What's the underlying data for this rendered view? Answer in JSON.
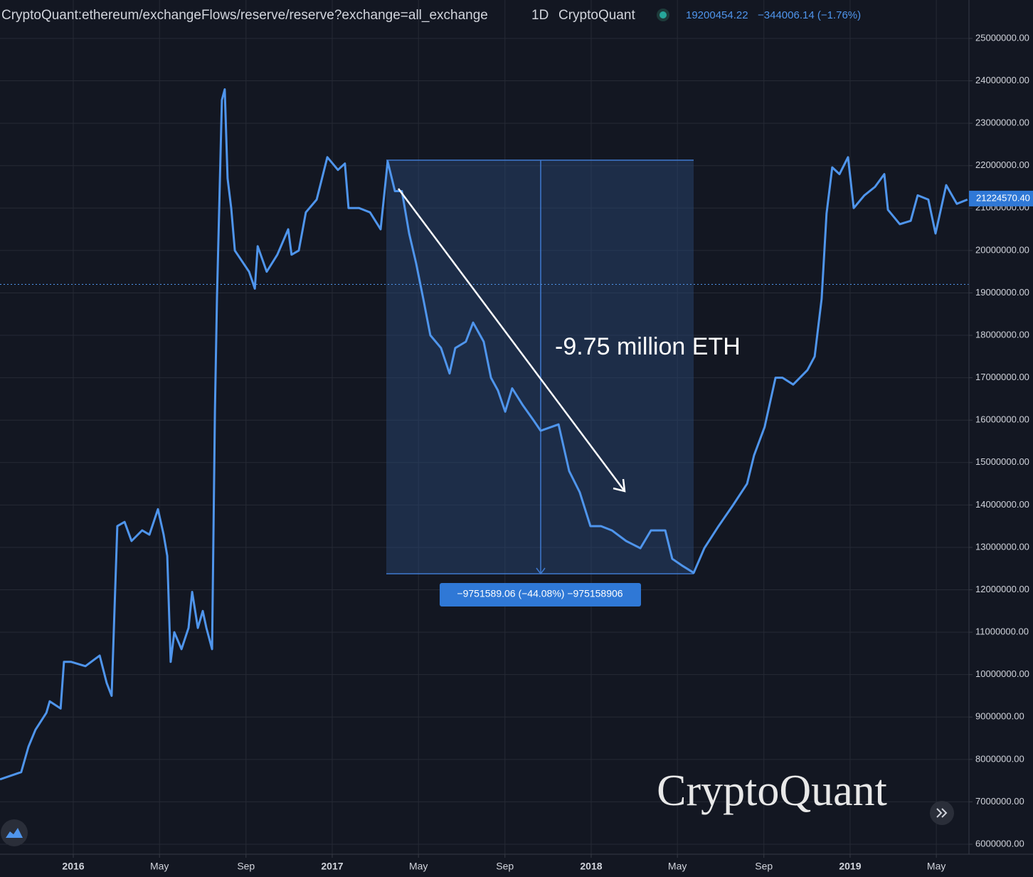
{
  "chart_data": {
    "type": "line",
    "title": "CryptoQuant:ethereum/exchangeFlows/reserve/reserve?exchange=all_exchange",
    "interval": "1D",
    "source": "CryptoQuant",
    "last_value": 19200454.22,
    "change": "−344006.14 (−1.76%)",
    "price_label": {
      "value": 21224570.4,
      "label": "21224570.40"
    },
    "annotation": "-9.75 million ETH",
    "measure_label": "−9751589.06 (−44.08%) −975158906",
    "watermark": "CryptoQuant",
    "x": [
      2015.717,
      2015.799,
      2015.827,
      2015.854,
      2015.896,
      2015.909,
      2015.951,
      2015.964,
      2015.992,
      2016.047,
      2016.102,
      2016.129,
      2016.148,
      2016.157,
      2016.17,
      2016.198,
      2016.225,
      2016.266,
      2016.294,
      2016.327,
      2016.349,
      2016.363,
      2016.376,
      2016.39,
      2016.418,
      2016.445,
      2016.459,
      2016.481,
      2016.5,
      2016.514,
      2016.536,
      2016.547,
      2016.555,
      2016.574,
      2016.585,
      2016.596,
      2016.61,
      2016.624,
      2016.679,
      2016.701,
      2016.712,
      2016.747,
      2016.788,
      2016.83,
      2016.843,
      2016.871,
      2016.898,
      2016.94,
      2016.981,
      2017.022,
      2017.049,
      2017.063,
      2017.104,
      2017.146,
      2017.187,
      2017.214,
      2017.242,
      2017.269,
      2017.297,
      2017.324,
      2017.352,
      2017.379,
      2017.42,
      2017.453,
      2017.475,
      2017.516,
      2017.544,
      2017.585,
      2017.613,
      2017.64,
      2017.668,
      2017.695,
      2017.736,
      2017.777,
      2017.805,
      2017.874,
      2017.915,
      2017.956,
      2017.997,
      2018.038,
      2018.08,
      2018.135,
      2018.19,
      2018.231,
      2018.286,
      2018.313,
      2018.354,
      2018.396,
      2018.437,
      2018.492,
      2018.547,
      2018.602,
      2018.629,
      2018.67,
      2018.712,
      2018.739,
      2018.78,
      2018.835,
      2018.863,
      2018.89,
      2018.909,
      2018.931,
      2018.959,
      2018.992,
      2019.014,
      2019.055,
      2019.096,
      2019.132,
      2019.146,
      2019.192,
      2019.234,
      2019.261,
      2019.302,
      2019.33,
      2019.371,
      2019.412,
      2019.453
    ],
    "series": [
      {
        "name": "reserve",
        "color": "#4f95ec",
        "values": [
          7530000,
          7700000,
          8300000,
          8700000,
          9100000,
          9370000,
          9200000,
          10300000,
          10300000,
          10200000,
          10450000,
          9800000,
          9500000,
          11100000,
          13500000,
          13600000,
          13150000,
          13400000,
          13300000,
          13900000,
          13300000,
          12800000,
          10300000,
          11000000,
          10600000,
          11100000,
          11950000,
          11100000,
          11500000,
          11100000,
          10600000,
          16200000,
          18900000,
          23550000,
          23800000,
          21700000,
          21000000,
          20000000,
          19500000,
          19100000,
          20100000,
          19500000,
          19900000,
          20500000,
          19900000,
          20000000,
          20900000,
          21200000,
          22200000,
          21900000,
          22050000,
          21000000,
          21000000,
          20900000,
          20500000,
          22100000,
          21400000,
          21400000,
          20400000,
          19700000,
          18850000,
          18000000,
          17700000,
          17100000,
          17700000,
          17850000,
          18300000,
          17850000,
          17000000,
          16700000,
          16200000,
          16750000,
          16350000,
          16000000,
          15750000,
          15900000,
          14800000,
          14300000,
          13500000,
          13500000,
          13400000,
          13150000,
          12980000,
          13400000,
          13400000,
          12730000,
          12560000,
          12400000,
          12980000,
          13500000,
          13990000,
          14500000,
          15170000,
          15840000,
          17000000,
          17000000,
          16840000,
          17180000,
          17500000,
          18860000,
          20870000,
          21960000,
          21800000,
          22200000,
          21000000,
          21300000,
          21500000,
          21800000,
          20960000,
          20620000,
          20700000,
          21300000,
          21200000,
          20400000,
          21540000,
          21100000,
          21200000
        ]
      }
    ],
    "xlim": [
      2015.717,
      2019.459
    ],
    "xticks": [
      2016,
      {
        "value": 2016.333,
        "label": "May"
      },
      {
        "value": 2016.667,
        "label": "Sep"
      },
      2017,
      {
        "value": 2017.333,
        "label": "May"
      },
      {
        "value": 2017.667,
        "label": "Sep"
      },
      2018,
      {
        "value": 2018.333,
        "label": "May"
      },
      {
        "value": 2018.667,
        "label": "Sep"
      },
      2019,
      {
        "value": 2019.333,
        "label": "May"
      }
    ],
    "ylim": [
      5765000,
      25906000
    ],
    "yticks": [
      {
        "value": 6000000,
        "label": "6000000.00"
      },
      {
        "value": 7000000,
        "label": "7000000.00"
      },
      {
        "value": 8000000,
        "label": "8000000.00"
      },
      {
        "value": 9000000,
        "label": "9000000.00"
      },
      {
        "value": 10000000,
        "label": "10000000.00"
      },
      {
        "value": 11000000,
        "label": "11000000.00"
      },
      {
        "value": 12000000,
        "label": "12000000.00"
      },
      {
        "value": 13000000,
        "label": "13000000.00"
      },
      {
        "value": 14000000,
        "label": "14000000.00"
      },
      {
        "value": 15000000,
        "label": "15000000.00"
      },
      {
        "value": 16000000,
        "label": "16000000.00"
      },
      {
        "value": 17000000,
        "label": "17000000.00"
      },
      {
        "value": 18000000,
        "label": "18000000.00"
      },
      {
        "value": 19000000,
        "label": "19000000.00"
      },
      {
        "value": 20000000,
        "label": "20000000.00"
      },
      {
        "value": 21000000,
        "label": "21000000.00"
      },
      {
        "value": 22000000,
        "label": "22000000.00"
      },
      {
        "value": 23000000,
        "label": "23000000.00"
      },
      {
        "value": 24000000,
        "label": "24000000.00"
      },
      {
        "value": 25000000,
        "label": "25000000.00"
      }
    ],
    "grid": true
  }
}
